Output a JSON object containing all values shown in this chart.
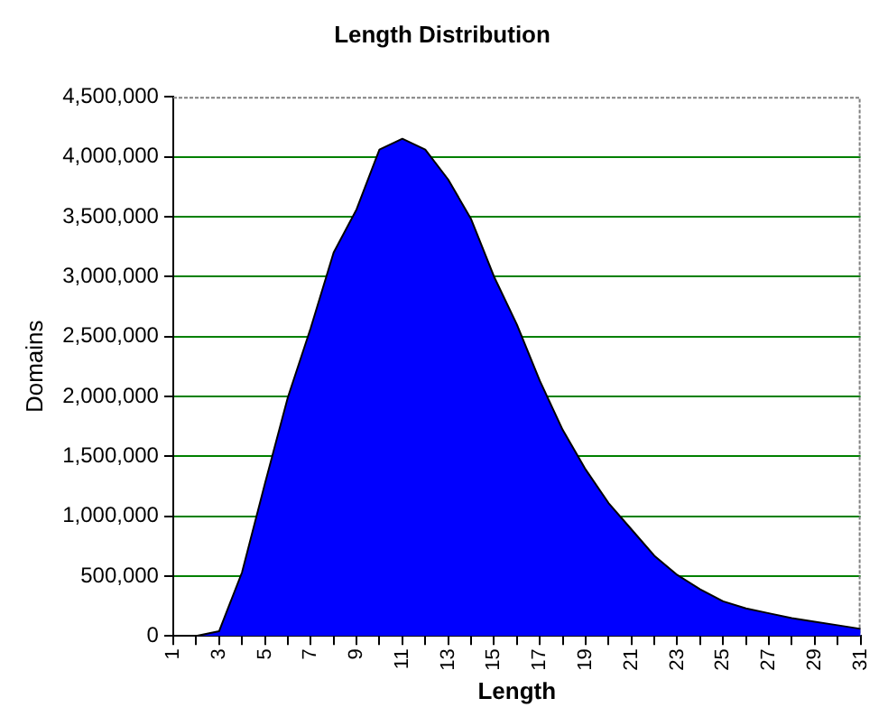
{
  "chart_data": {
    "type": "area",
    "title": "Length Distribution",
    "xlabel": "Length",
    "ylabel": "Domains",
    "categories": [
      "1",
      null,
      "3",
      null,
      "5",
      null,
      "7",
      null,
      "9",
      null,
      "11",
      null,
      "13",
      null,
      "15",
      null,
      "17",
      null,
      "19",
      null,
      "21",
      null,
      "23",
      null,
      "25",
      null,
      "27",
      null,
      "29",
      null,
      "31"
    ],
    "series": [
      {
        "color": "#0000ff",
        "values": [
          0,
          0,
          40000,
          530000,
          1270000,
          1990000,
          2570000,
          3200000,
          3560000,
          4060000,
          4150000,
          4060000,
          3810000,
          3480000,
          3000000,
          2600000,
          2130000,
          1720000,
          1390000,
          1110000,
          890000,
          670000,
          510000,
          390000,
          290000,
          230000,
          190000,
          150000,
          120000,
          90000,
          60000
        ]
      }
    ],
    "ylim": [
      0,
      4500000
    ],
    "yticks": [
      0,
      {
        "value": 500000,
        "label": "500,000"
      },
      {
        "value": 1000000,
        "label": "1,000,000"
      },
      {
        "value": 1500000,
        "label": "1,500,000"
      },
      {
        "value": 2000000,
        "label": "2,000,000"
      },
      {
        "value": 2500000,
        "label": "2,500,000"
      },
      {
        "value": 3000000,
        "label": "3,000,000"
      },
      {
        "value": 3500000,
        "label": "3,500,000"
      },
      {
        "value": 4000000,
        "label": "4,000,000"
      },
      {
        "value": 4500000,
        "label": "4,500,000"
      }
    ],
    "grid": "y",
    "legend": false
  }
}
